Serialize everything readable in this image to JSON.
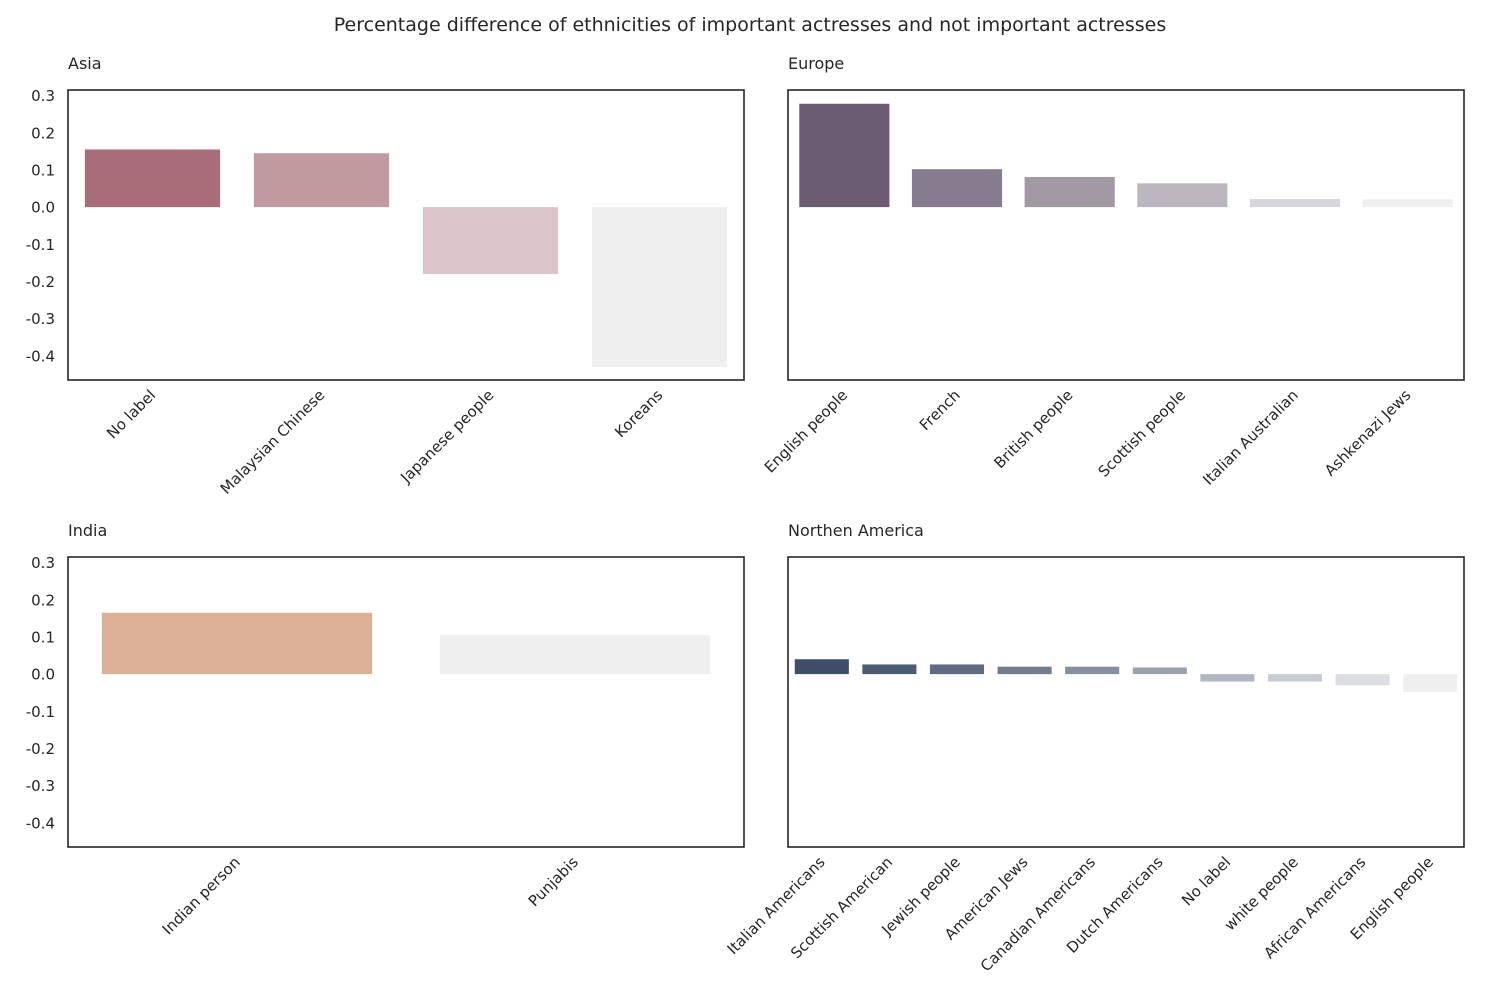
{
  "title": "Percentage difference of ethnicities of important actresses and not important actresses",
  "chart_data": [
    {
      "type": "bar",
      "title": "Asia",
      "categories": [
        "No label",
        "Malaysian Chinese",
        "Japanese people",
        "Koreans"
      ],
      "values": [
        0.155,
        0.145,
        -0.18,
        -0.43
      ],
      "colors": [
        "#a96d79",
        "#c19aa0",
        "#dcc5ca",
        "#efefef"
      ],
      "ylim": [
        -0.465,
        0.315
      ],
      "yticks": [
        0.3,
        0.2,
        0.1,
        0.0,
        -0.1,
        -0.2,
        -0.3,
        -0.4
      ],
      "show_yticks": true,
      "grid": false
    },
    {
      "type": "bar",
      "title": "Europe",
      "categories": [
        "English people",
        "French",
        "British people",
        "Scottish people",
        "Italian Australian",
        "Ashkenazi Jews"
      ],
      "values": [
        0.278,
        0.102,
        0.081,
        0.064,
        0.022,
        0.021
      ],
      "colors": [
        "#6b5c74",
        "#877c8d",
        "#a299a5",
        "#bcb7be",
        "#d7d7db",
        "#efefef"
      ],
      "ylim": [
        -0.465,
        0.315
      ],
      "yticks": [
        0.3,
        0.2,
        0.1,
        0.0,
        -0.1,
        -0.2,
        -0.3,
        -0.4
      ],
      "show_yticks": false,
      "grid": false
    },
    {
      "type": "bar",
      "title": "India",
      "categories": [
        "Indian person",
        "Punjabis"
      ],
      "values": [
        0.165,
        0.105
      ],
      "colors": [
        "#dcb097",
        "#f0eff0"
      ],
      "ylim": [
        -0.465,
        0.315
      ],
      "yticks": [
        0.3,
        0.2,
        0.1,
        0.0,
        -0.1,
        -0.2,
        -0.3,
        -0.4
      ],
      "show_yticks": true,
      "grid": false
    },
    {
      "type": "bar",
      "title": "Northen America",
      "categories": [
        "Italian Americans",
        "Scottish American",
        "Jewish people",
        "American Jews",
        "Canadian Americans",
        "Dutch Americans",
        "No label",
        "white people",
        "African Americans",
        "English people"
      ],
      "values": [
        0.04,
        0.026,
        0.026,
        0.02,
        0.02,
        0.018,
        -0.02,
        -0.02,
        -0.03,
        -0.048
      ],
      "colors": [
        "#3e4e68",
        "#4c5b74",
        "#5e6b80",
        "#717d8f",
        "#86909f",
        "#9ba3af",
        "#b2b8c1",
        "#c8ccd3",
        "#dcdee3",
        "#efefef"
      ],
      "ylim": [
        -0.465,
        0.315
      ],
      "yticks": [
        0.3,
        0.2,
        0.1,
        0.0,
        -0.1,
        -0.2,
        -0.3,
        -0.4
      ],
      "show_yticks": false,
      "grid": false
    }
  ]
}
